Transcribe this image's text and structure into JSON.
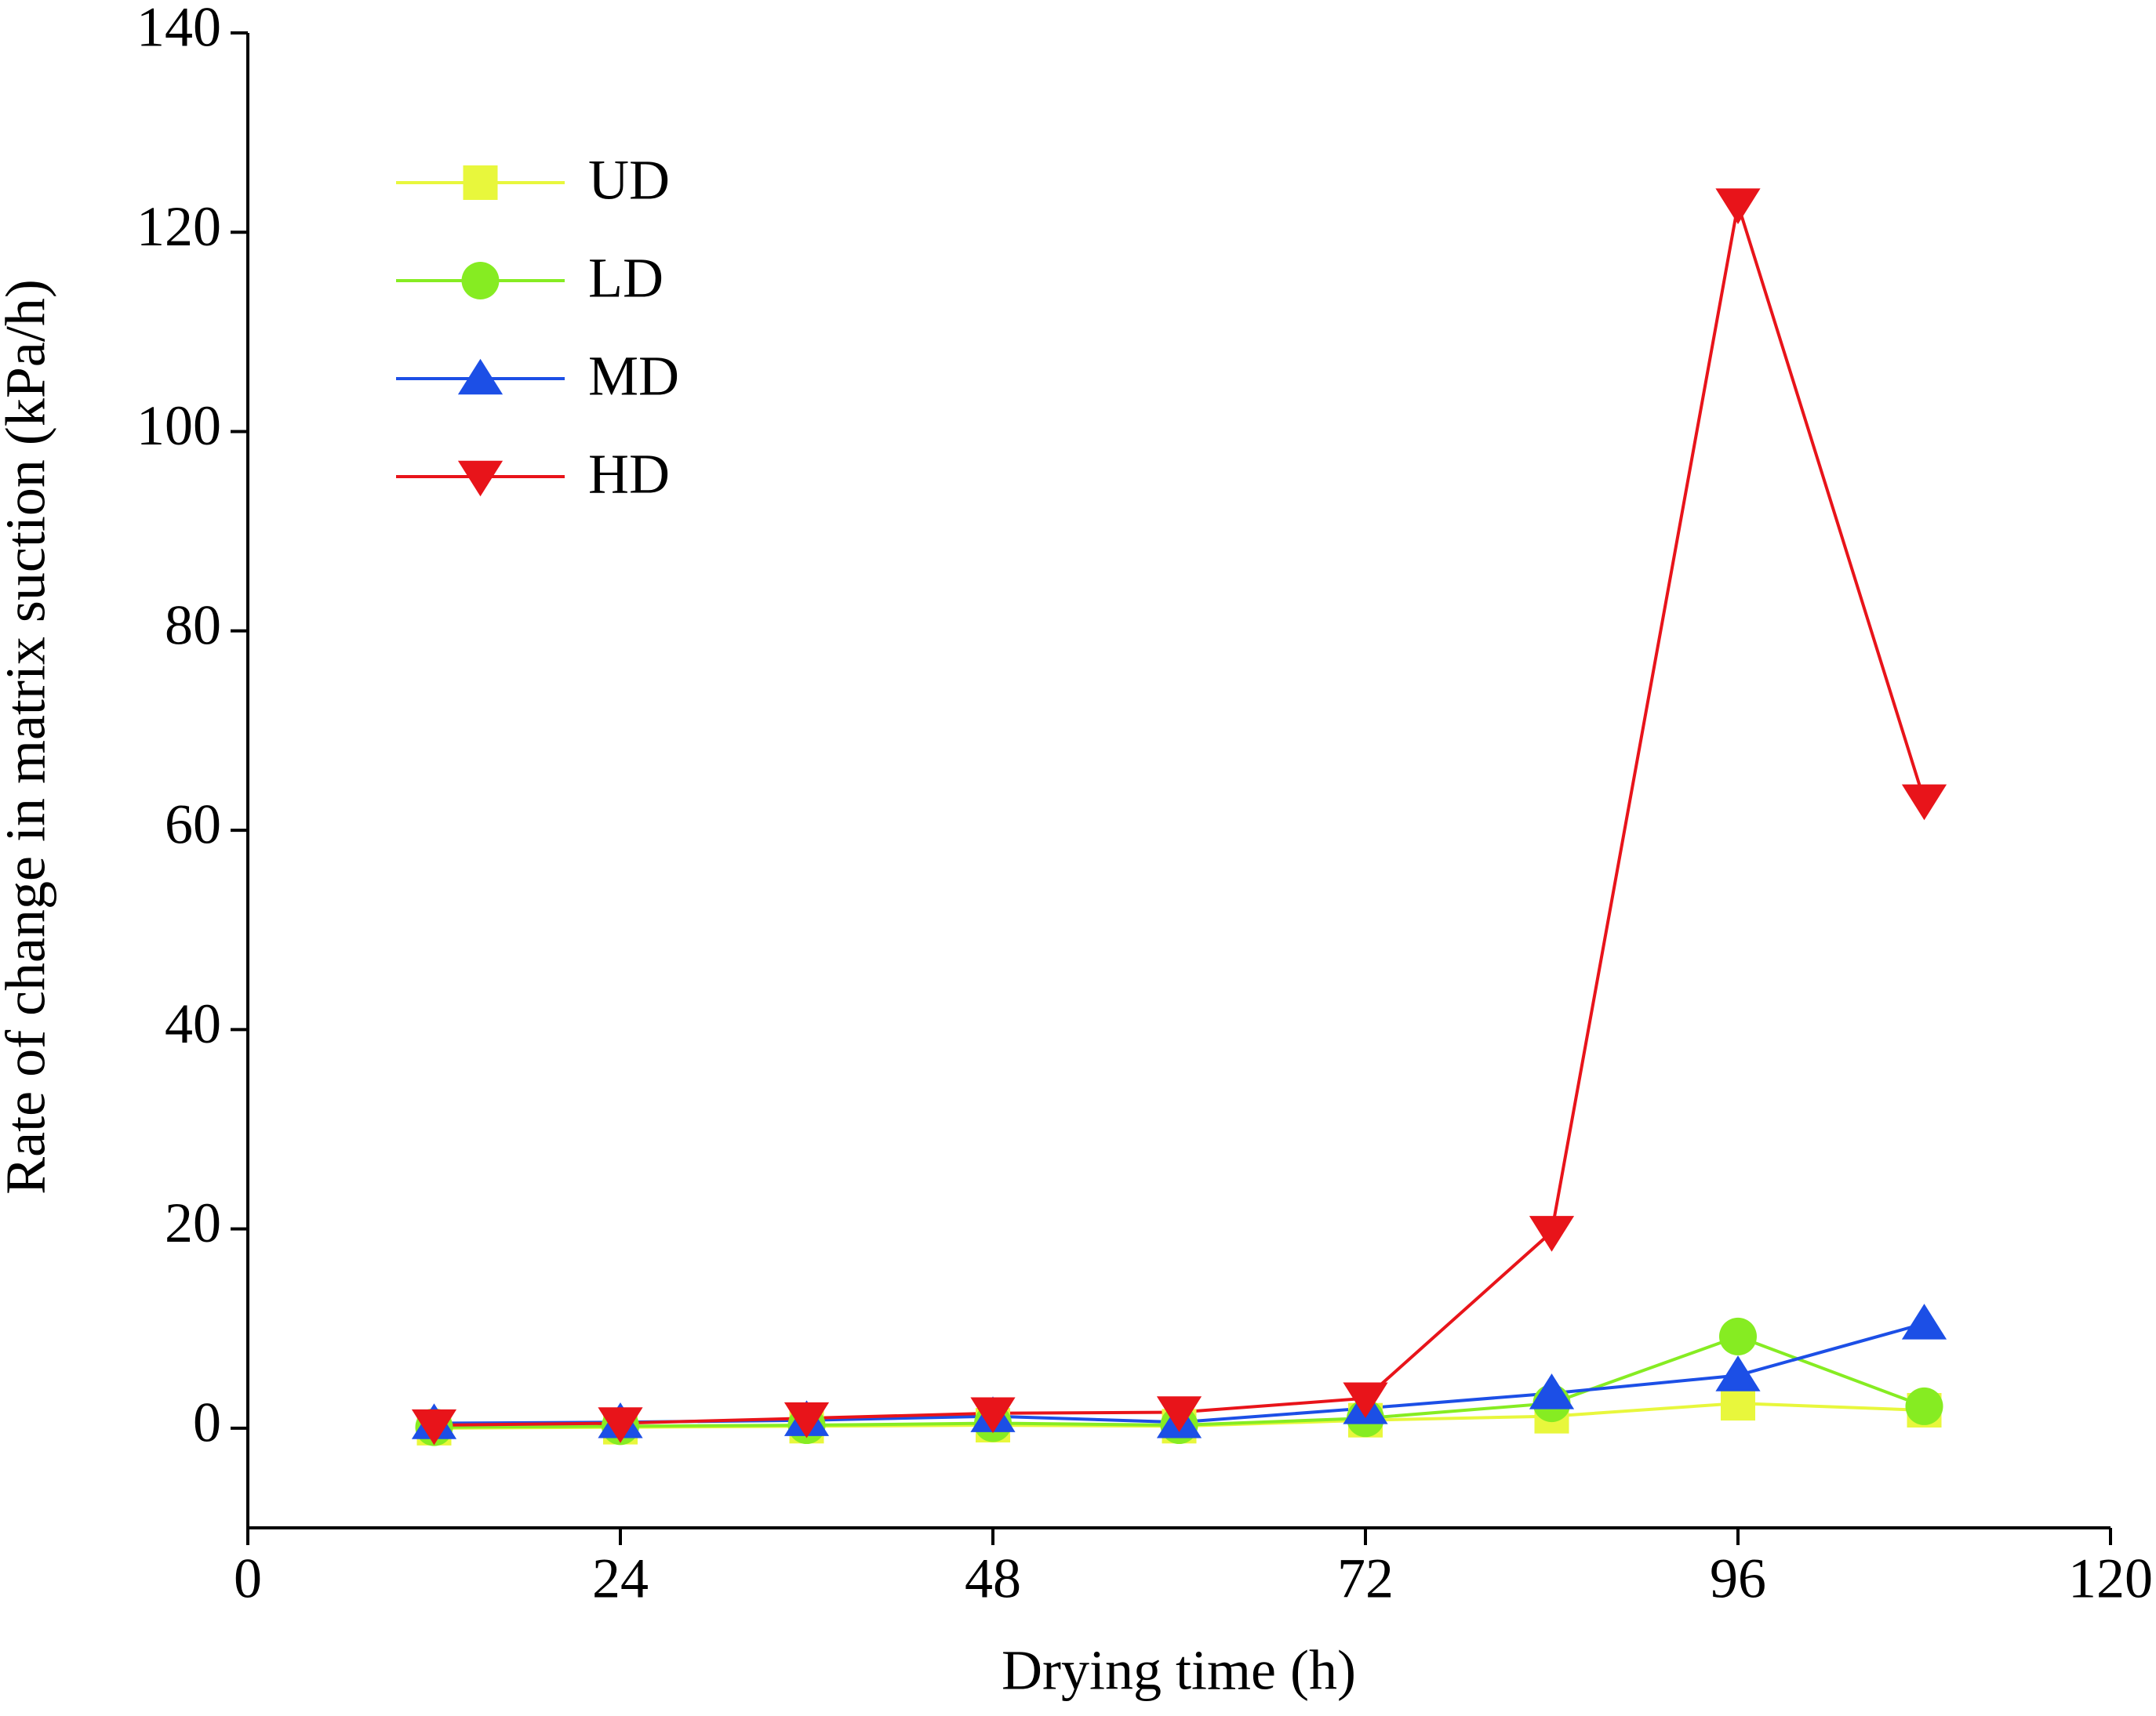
{
  "chart_data": {
    "type": "line",
    "x_label": "Drying time (h)",
    "y_label": "Rate of change in matrix suction (kPa/h)",
    "x": [
      12,
      24,
      36,
      48,
      60,
      72,
      84,
      96,
      108
    ],
    "xlim": [
      0,
      120
    ],
    "xticks": [
      0,
      24,
      48,
      72,
      96,
      120
    ],
    "ylim": [
      -10,
      140
    ],
    "yticks": [
      0,
      20,
      40,
      60,
      80,
      100,
      120,
      140
    ],
    "legend": "upper left",
    "series": [
      {
        "name": "UD",
        "color": "#e8f73c",
        "marker": "square",
        "values": [
          0,
          0.1,
          0.2,
          0.3,
          0.2,
          0.8,
          1.2,
          2.5,
          1.8
        ]
      },
      {
        "name": "LD",
        "color": "#86ec22",
        "marker": "circle",
        "values": [
          0.1,
          0.2,
          0.3,
          0.5,
          0.3,
          1.0,
          2.5,
          9.2,
          2.2
        ]
      },
      {
        "name": "MD",
        "color": "#1c4fe6",
        "marker": "triangle-up",
        "values": [
          0.5,
          0.6,
          0.8,
          1.2,
          0.6,
          2.0,
          3.5,
          5.3,
          10.5
        ]
      },
      {
        "name": "HD",
        "color": "#e8141a",
        "marker": "triangle-down",
        "values": [
          0.3,
          0.5,
          1.0,
          1.5,
          1.6,
          3.0,
          19.7,
          122.8,
          63.0
        ]
      }
    ]
  }
}
